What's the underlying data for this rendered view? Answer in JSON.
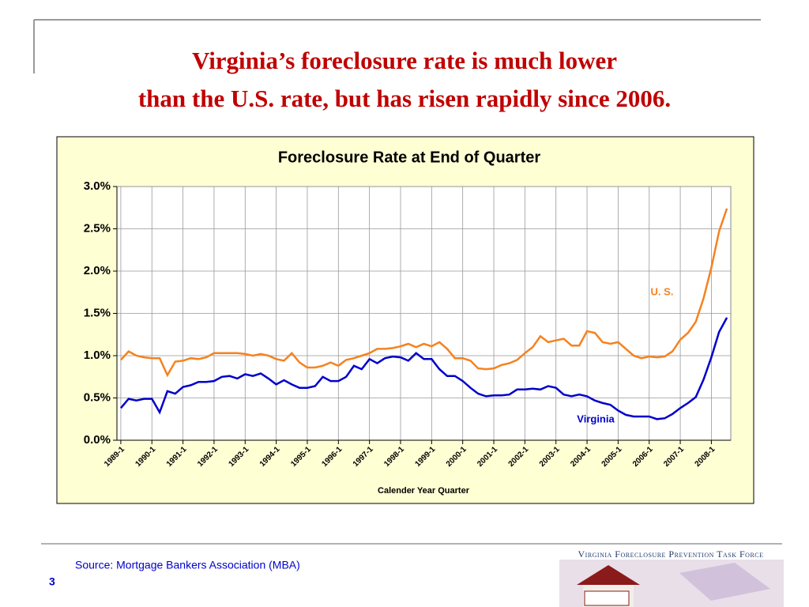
{
  "slide": {
    "title_line1": "Virginia’s foreclosure rate is much lower",
    "title_line2": "than the U.S. rate, but has risen rapidly since 2006.",
    "source": "Source: Mortgage Bankers Association (MBA)",
    "page_number": "3",
    "logo_text": "Virginia Foreclosure Prevention Task Force"
  },
  "chart_data": {
    "type": "line",
    "title": "Foreclosure Rate at End of Quarter",
    "x_label": "Calender Year Quarter",
    "categories": [
      "1989-1",
      null,
      null,
      null,
      "1990-1",
      null,
      null,
      null,
      "1991-1",
      null,
      null,
      null,
      "1992-1",
      null,
      null,
      null,
      "1993-1",
      null,
      null,
      null,
      "1994-1",
      null,
      null,
      null,
      "1995-1",
      null,
      null,
      null,
      "1996-1",
      null,
      null,
      null,
      "1997-1",
      null,
      null,
      null,
      "1998-1",
      null,
      null,
      null,
      "1999-1",
      null,
      null,
      null,
      "2000-1",
      null,
      null,
      null,
      "2001-1",
      null,
      null,
      null,
      "2002-1",
      null,
      null,
      null,
      "2003-1",
      null,
      null,
      null,
      "2004-1",
      null,
      null,
      null,
      "2005-1",
      null,
      null,
      null,
      "2006-1",
      null,
      null,
      null,
      "2007-1",
      null,
      null,
      null,
      "2008-1",
      null,
      null
    ],
    "series": [
      {
        "name": "U. S.",
        "color": "#f58220",
        "values": [
          0.95,
          1.05,
          1.0,
          0.98,
          0.97,
          0.97,
          0.77,
          0.93,
          0.94,
          0.97,
          0.96,
          0.98,
          1.03,
          1.03,
          1.03,
          1.03,
          1.02,
          1.0,
          1.02,
          1.0,
          0.96,
          0.94,
          1.03,
          0.92,
          0.86,
          0.86,
          0.88,
          0.92,
          0.88,
          0.95,
          0.97,
          1.0,
          1.03,
          1.08,
          1.08,
          1.09,
          1.11,
          1.14,
          1.1,
          1.14,
          1.11,
          1.16,
          1.08,
          0.97,
          0.97,
          0.94,
          0.85,
          0.84,
          0.85,
          0.89,
          0.91,
          0.95,
          1.03,
          1.1,
          1.23,
          1.16,
          1.18,
          1.2,
          1.12,
          1.12,
          1.29,
          1.27,
          1.16,
          1.14,
          1.16,
          1.08,
          1.0,
          0.97,
          0.99,
          0.98,
          0.99,
          1.05,
          1.19,
          1.27,
          1.4,
          1.68,
          2.04,
          2.47,
          2.74
        ]
      },
      {
        "name": "Virginia",
        "color": "#0000cc",
        "values": [
          0.38,
          0.49,
          0.47,
          0.49,
          0.49,
          0.33,
          0.58,
          0.55,
          0.63,
          0.65,
          0.69,
          0.69,
          0.7,
          0.75,
          0.76,
          0.73,
          0.78,
          0.76,
          0.79,
          0.73,
          0.66,
          0.71,
          0.66,
          0.62,
          0.62,
          0.64,
          0.75,
          0.7,
          0.7,
          0.75,
          0.88,
          0.84,
          0.96,
          0.91,
          0.97,
          0.99,
          0.98,
          0.94,
          1.03,
          0.96,
          0.96,
          0.84,
          0.76,
          0.76,
          0.7,
          0.62,
          0.55,
          0.52,
          0.53,
          0.53,
          0.54,
          0.6,
          0.6,
          0.61,
          0.6,
          0.64,
          0.62,
          0.54,
          0.52,
          0.54,
          0.52,
          0.47,
          0.44,
          0.42,
          0.35,
          0.3,
          0.28,
          0.28,
          0.28,
          0.25,
          0.26,
          0.31,
          0.38,
          0.44,
          0.51,
          0.72,
          0.98,
          1.28,
          1.45
        ]
      }
    ],
    "ylim": [
      0,
      3
    ],
    "yticks": [
      {
        "value": 0,
        "label": "0.0%"
      },
      {
        "value": 0.5,
        "label": "0.5%"
      },
      {
        "value": 1,
        "label": "1.0%"
      },
      {
        "value": 1.5,
        "label": "1.5%"
      },
      {
        "value": 2,
        "label": "2.0%"
      },
      {
        "value": 2.5,
        "label": "2.5%"
      },
      {
        "value": 3,
        "label": "3.0%"
      }
    ],
    "grid": true,
    "background": "#ffffd4"
  }
}
